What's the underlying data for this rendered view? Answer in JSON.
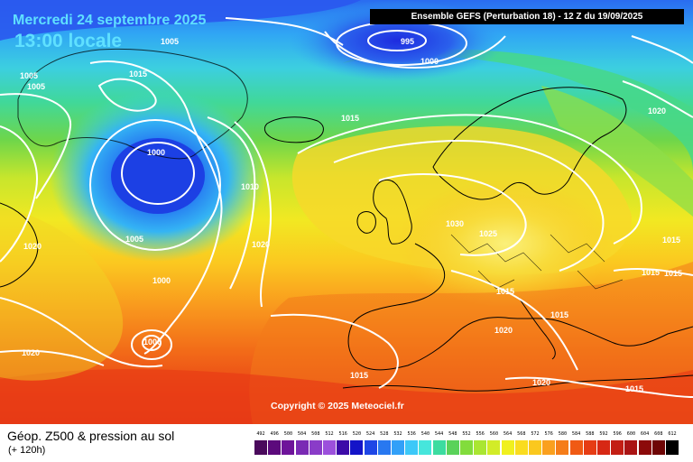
{
  "header": {
    "date": "Mercredi 24 septembre 2025",
    "local_time": "13:00 locale",
    "run_info": "Ensemble GEFS  (Perturbation 18)  -  12 Z du 19/09/2025"
  },
  "copyright": "Copyright © 2025 Meteociel.fr",
  "footer": {
    "title": "Géop. Z500 & pression au sol",
    "lead_time": "(+ 120h)"
  },
  "legend": {
    "values": [
      "492",
      "496",
      "500",
      "504",
      "508",
      "512",
      "516",
      "520",
      "524",
      "528",
      "532",
      "536",
      "540",
      "544",
      "548",
      "552",
      "556",
      "560",
      "564",
      "568",
      "572",
      "576",
      "580",
      "584",
      "588",
      "592",
      "596",
      "600",
      "604",
      "608",
      "612"
    ],
    "colors": [
      "#4a0a5c",
      "#5c0a7c",
      "#6e149a",
      "#7a2ab4",
      "#8a3cc8",
      "#9c50dc",
      "#3c0aa8",
      "#1414c8",
      "#1e46e6",
      "#2878f0",
      "#32a0f8",
      "#3cc8f8",
      "#46e6dc",
      "#3cdca0",
      "#5ad25a",
      "#82dc3c",
      "#aae632",
      "#d2ec28",
      "#f0f01e",
      "#fadc1e",
      "#fac81e",
      "#faa01e",
      "#f57d19",
      "#f05a14",
      "#e63c14",
      "#d72814",
      "#c31e14",
      "#aa1414",
      "#8c0a0a",
      "#6e0505",
      "#000000"
    ]
  },
  "isobars": [
    {
      "label": "1005",
      "text": "1005"
    },
    {
      "label": "995",
      "text": "995"
    },
    {
      "label": "1000",
      "text": "1000"
    },
    {
      "label": "1005",
      "text": "1005"
    },
    {
      "label": "1005",
      "text": "1005"
    },
    {
      "label": "1015",
      "text": "1015"
    },
    {
      "label": "1015",
      "text": "1015"
    },
    {
      "label": "1020",
      "text": "1020"
    },
    {
      "label": "1000",
      "text": "1000"
    },
    {
      "label": "1010",
      "text": "1010"
    },
    {
      "label": "1005",
      "text": "1005"
    },
    {
      "label": "1020",
      "text": "1020"
    },
    {
      "label": "1020",
      "text": "1020"
    },
    {
      "label": "1030",
      "text": "1030"
    },
    {
      "label": "1025",
      "text": "1025"
    },
    {
      "label": "1015",
      "text": "1015"
    },
    {
      "label": "1015",
      "text": "1015"
    },
    {
      "label": "1015",
      "text": "1015"
    },
    {
      "label": "1015",
      "text": "1015"
    },
    {
      "label": "1000",
      "text": "1000"
    },
    {
      "label": "1000",
      "text": "1000"
    },
    {
      "label": "1020",
      "text": "1020"
    },
    {
      "label": "1020",
      "text": "1020"
    },
    {
      "label": "1015",
      "text": "1015"
    },
    {
      "label": "1015",
      "text": "1015"
    },
    {
      "label": "1020",
      "text": "1020"
    },
    {
      "label": "1015",
      "text": "1015"
    }
  ]
}
